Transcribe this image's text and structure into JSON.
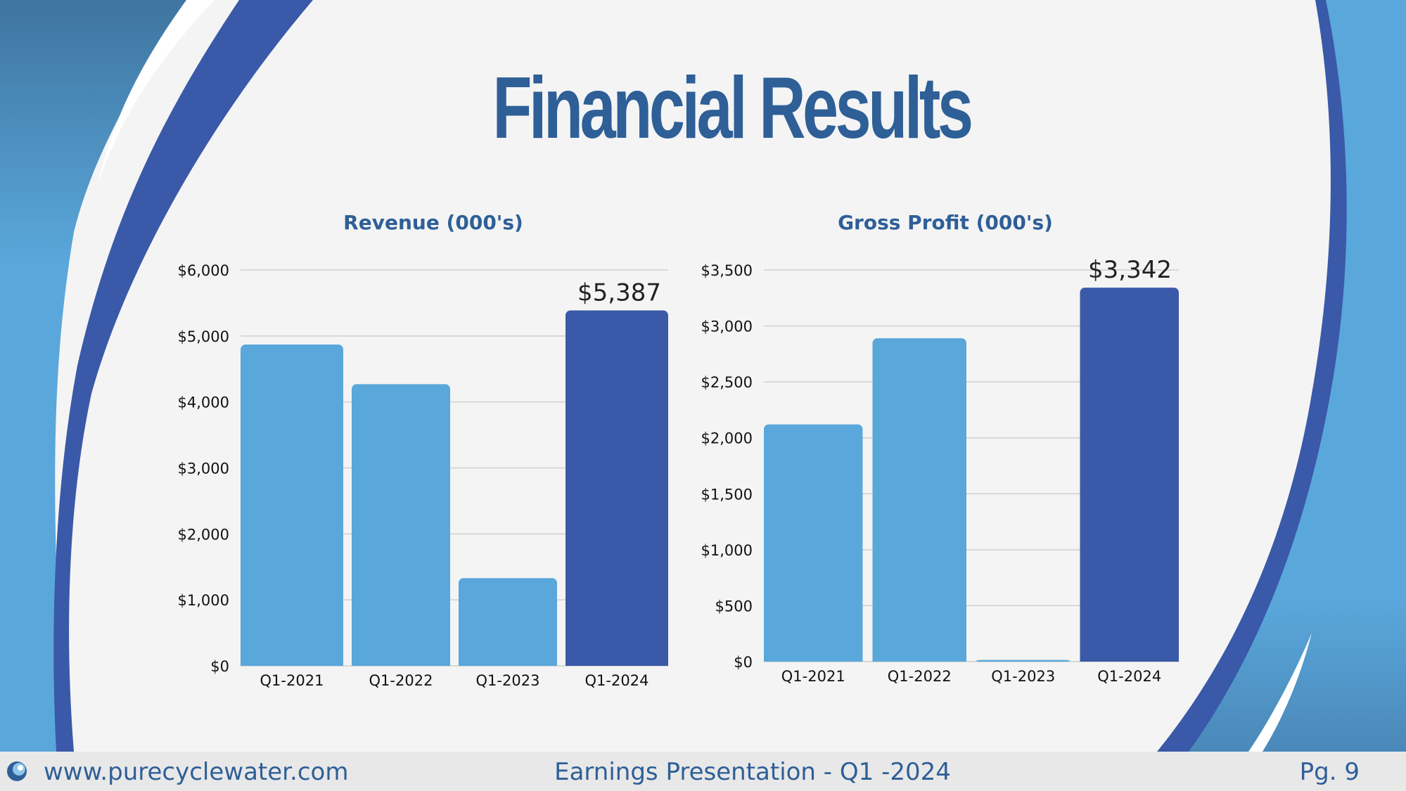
{
  "page": {
    "title": "Financial Results",
    "footer_site": "www.purecyclewater.com",
    "footer_center": "Earnings Presentation - Q1 -2024",
    "footer_page": "Pg. 9",
    "logo_icon": "water-drop-icon"
  },
  "colors": {
    "title": "#2e5f97",
    "bar_light": "#5aa7db",
    "bar_dark": "#3a59a8",
    "grid": "#cfcfcf",
    "footer_bg": "#e8e8e8"
  },
  "chart_data": [
    {
      "type": "bar",
      "title": "Revenue (000's)",
      "categories": [
        "Q1-2021",
        "Q1-2022",
        "Q1-2023",
        "Q1-2024"
      ],
      "values": [
        4870,
        4270,
        1330,
        5387
      ],
      "highlight_index": 3,
      "highlight_label": "$5,387",
      "yticks": [
        0,
        1000,
        2000,
        3000,
        4000,
        5000,
        6000
      ],
      "ytick_labels": [
        "$0",
        "$1,000",
        "$2,000",
        "$3,000",
        "$4,000",
        "$5,000",
        "$6,000"
      ],
      "ylim": [
        0,
        6000
      ],
      "xlabel": "",
      "ylabel": "",
      "grid": true
    },
    {
      "type": "bar",
      "title": "Gross Profit (000's)",
      "categories": [
        "Q1-2021",
        "Q1-2022",
        "Q1-2023",
        "Q1-2024"
      ],
      "values": [
        2120,
        2890,
        15,
        3342
      ],
      "highlight_index": 3,
      "highlight_label": "$3,342",
      "yticks": [
        0,
        500,
        1000,
        1500,
        2000,
        2500,
        3000,
        3500
      ],
      "ytick_labels": [
        "$0",
        "$500",
        "$1,000",
        "$1,500",
        "$2,000",
        "$2,500",
        "$3,000",
        "$3,500"
      ],
      "ylim": [
        0,
        3500
      ],
      "xlabel": "",
      "ylabel": "",
      "grid": true
    }
  ]
}
